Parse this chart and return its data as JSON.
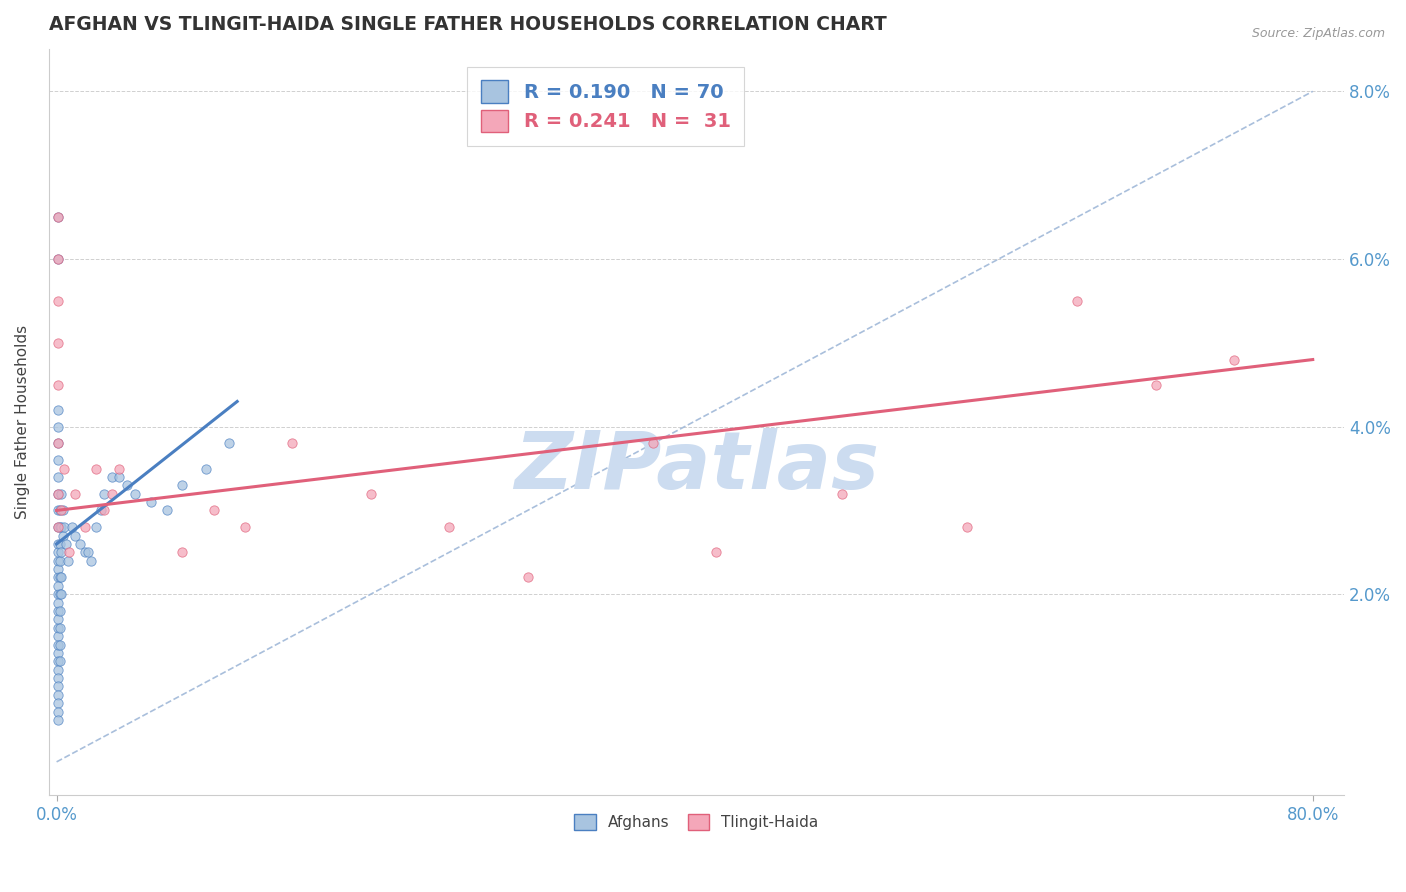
{
  "title": "AFGHAN VS TLINGIT-HAIDA SINGLE FATHER HOUSEHOLDS CORRELATION CHART",
  "source": "Source: ZipAtlas.com",
  "ylabel": "Single Father Households",
  "color_afghan": "#a8c4e0",
  "color_tlingit": "#f4a7b9",
  "color_afghan_line": "#4a7fc1",
  "color_tlingit_line": "#e0607a",
  "color_ref_line": "#a0b8d8",
  "watermark": "ZIPatlas",
  "watermark_color": "#ccdcf0",
  "legend_r1": "R = 0.190",
  "legend_n1": "N = 70",
  "legend_r2": "R = 0.241",
  "legend_n2": "N =  31",
  "afghan_x": [
    0.001,
    0.001,
    0.001,
    0.001,
    0.001,
    0.001,
    0.001,
    0.001,
    0.001,
    0.001,
    0.001,
    0.001,
    0.001,
    0.001,
    0.001,
    0.001,
    0.001,
    0.001,
    0.001,
    0.001,
    0.001,
    0.001,
    0.001,
    0.001,
    0.001,
    0.001,
    0.001,
    0.001,
    0.001,
    0.001,
    0.002,
    0.002,
    0.002,
    0.002,
    0.002,
    0.002,
    0.002,
    0.002,
    0.002,
    0.002,
    0.003,
    0.003,
    0.003,
    0.003,
    0.003,
    0.004,
    0.004,
    0.005,
    0.006,
    0.007,
    0.01,
    0.012,
    0.015,
    0.018,
    0.02,
    0.022,
    0.025,
    0.028,
    0.03,
    0.035,
    0.04,
    0.045,
    0.05,
    0.06,
    0.07,
    0.08,
    0.095,
    0.11,
    0.001,
    0.001
  ],
  "afghan_y": [
    0.03,
    0.028,
    0.026,
    0.024,
    0.022,
    0.02,
    0.018,
    0.016,
    0.015,
    0.013,
    0.012,
    0.011,
    0.01,
    0.009,
    0.008,
    0.007,
    0.006,
    0.005,
    0.025,
    0.023,
    0.021,
    0.019,
    0.017,
    0.014,
    0.032,
    0.034,
    0.036,
    0.038,
    0.04,
    0.042,
    0.03,
    0.028,
    0.026,
    0.024,
    0.022,
    0.02,
    0.018,
    0.016,
    0.014,
    0.012,
    0.032,
    0.028,
    0.025,
    0.022,
    0.02,
    0.03,
    0.027,
    0.028,
    0.026,
    0.024,
    0.028,
    0.027,
    0.026,
    0.025,
    0.025,
    0.024,
    0.028,
    0.03,
    0.032,
    0.034,
    0.034,
    0.033,
    0.032,
    0.031,
    0.03,
    0.033,
    0.035,
    0.038,
    0.06,
    0.065
  ],
  "tlingit_x": [
    0.001,
    0.001,
    0.001,
    0.001,
    0.001,
    0.001,
    0.001,
    0.001,
    0.003,
    0.005,
    0.008,
    0.012,
    0.018,
    0.025,
    0.03,
    0.035,
    0.04,
    0.08,
    0.1,
    0.12,
    0.15,
    0.2,
    0.25,
    0.3,
    0.38,
    0.42,
    0.5,
    0.58,
    0.65,
    0.7,
    0.75
  ],
  "tlingit_y": [
    0.065,
    0.06,
    0.055,
    0.05,
    0.045,
    0.038,
    0.032,
    0.028,
    0.03,
    0.035,
    0.025,
    0.032,
    0.028,
    0.035,
    0.03,
    0.032,
    0.035,
    0.025,
    0.03,
    0.028,
    0.038,
    0.032,
    0.028,
    0.022,
    0.038,
    0.025,
    0.032,
    0.028,
    0.055,
    0.045,
    0.048
  ],
  "ref_line_x": [
    0.0,
    0.8
  ],
  "ref_line_y": [
    0.0,
    0.08
  ],
  "afghan_trend_x": [
    0.0,
    0.115
  ],
  "afghan_trend_y": [
    0.026,
    0.043
  ],
  "tlingit_trend_x": [
    0.0,
    0.8
  ],
  "tlingit_trend_y": [
    0.03,
    0.048
  ],
  "xlim": [
    -0.005,
    0.82
  ],
  "ylim": [
    -0.004,
    0.085
  ]
}
